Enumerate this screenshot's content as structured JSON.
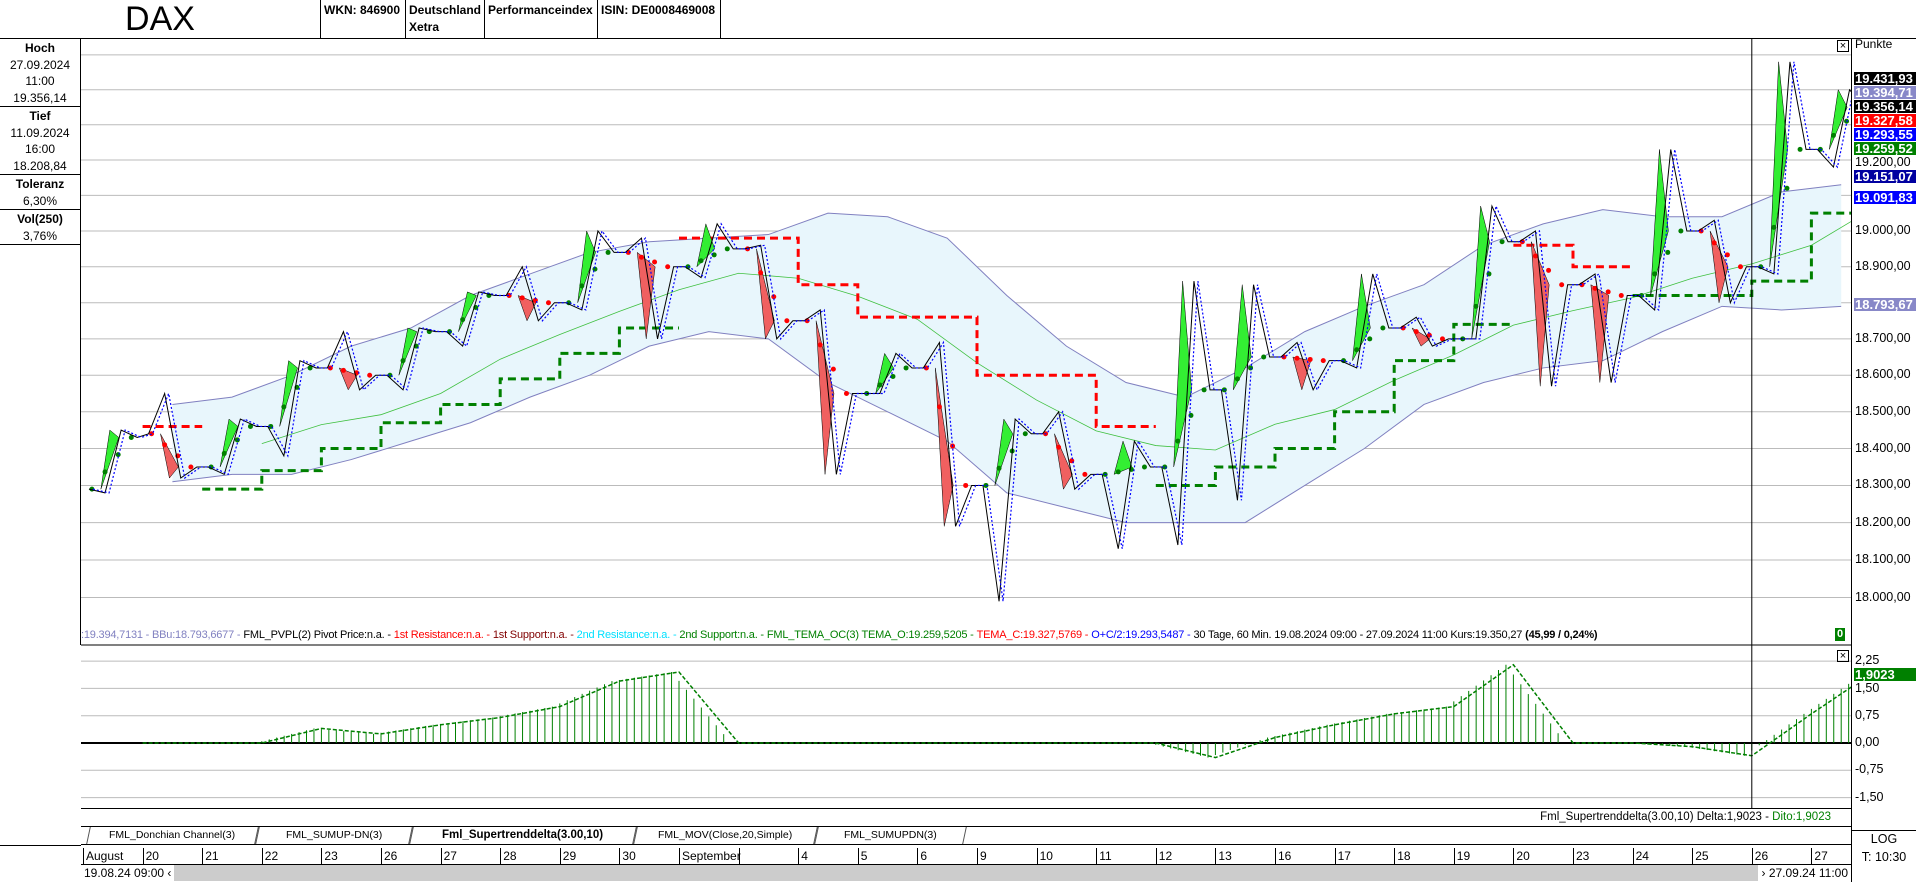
{
  "header": {
    "title": "DAX",
    "cells": [
      "WKN: 846900",
      "Deutschland\nXetra",
      "Performanceindex",
      "ISIN: DE0008469008"
    ]
  },
  "left_panel": [
    {
      "label": "Hoch",
      "values": [
        "27.09.2024",
        "11:00",
        "19.356,14"
      ]
    },
    {
      "label": "Tief",
      "values": [
        "11.09.2024",
        "16:00",
        "18.208,84"
      ]
    },
    {
      "label": "Toleranz",
      "values": [
        "6,30%"
      ]
    },
    {
      "label": "Vol(250)",
      "values": [
        "3,76%"
      ]
    }
  ],
  "right_axis": {
    "unit": "Punkte",
    "ticks": [
      {
        "v": 19200,
        "t": "19.200,00"
      },
      {
        "v": 19000,
        "t": "19.000,00"
      },
      {
        "v": 18900,
        "t": "18.900,00"
      },
      {
        "v": 18700,
        "t": "18.700,00"
      },
      {
        "v": 18600,
        "t": "18.600,00"
      },
      {
        "v": 18500,
        "t": "18.500,00"
      },
      {
        "v": 18400,
        "t": "18.400,00"
      },
      {
        "v": 18300,
        "t": "18.300,00"
      },
      {
        "v": 18200,
        "t": "18.200,00"
      },
      {
        "v": 18100,
        "t": "18.100,00"
      },
      {
        "v": 18000,
        "t": "18.000,00"
      }
    ],
    "markers": [
      {
        "v": 19431.93,
        "t": "19.431,93",
        "bg": "#000000"
      },
      {
        "v": 19394.71,
        "t": "19.394,71",
        "bg": "#8888c8"
      },
      {
        "v": 19356.14,
        "t": "19.356,14",
        "bg": "#000000"
      },
      {
        "v": 19327.58,
        "t": "19.327,58",
        "bg": "#ff0000"
      },
      {
        "v": 19293.55,
        "t": "19.293,55",
        "bg": "#0000ff"
      },
      {
        "v": 19259.52,
        "t": "19.259,52",
        "bg": "#008000"
      },
      {
        "v": 19151.07,
        "t": "19.151,07",
        "bg": "#0000a0"
      },
      {
        "v": 19091.83,
        "t": "19.091,83",
        "bg": "#0000ff"
      },
      {
        "v": 18793.67,
        "t": "18.793,67",
        "bg": "#8888c8"
      }
    ],
    "indicator_ticks": [
      {
        "v": 2.25,
        "t": "2,25"
      },
      {
        "v": 1.5,
        "t": "1,50"
      },
      {
        "v": 0.75,
        "t": "0,75"
      },
      {
        "v": 0,
        "t": "0,00"
      },
      {
        "v": -0.75,
        "t": "-0,75"
      },
      {
        "v": -1.5,
        "t": "-1,50"
      }
    ],
    "indicator_marker": {
      "v": 1.9023,
      "t": "1,9023",
      "bg": "#008000"
    },
    "scale_mode": "LOG",
    "time": "T: 10:30"
  },
  "legend": [
    {
      "t": ":19.394,7131 - BBu:18.793,6677 -",
      "c": "#8080c0"
    },
    {
      "t": "FML_PVPL(2) Pivot Price:n.a. -",
      "c": "#000000"
    },
    {
      "t": "1st Resistance:n.a. -",
      "c": "#ff0000"
    },
    {
      "t": "1st Support:n.a. -",
      "c": "#800000"
    },
    {
      "t": "2nd Resistance:n.a. -",
      "c": "#00e0ff"
    },
    {
      "t": "2nd Support:n.a. -",
      "c": "#008000"
    },
    {
      "t": "FML_TEMA_OC(3) TEMA_O:19.259,5205 -",
      "c": "#008000"
    },
    {
      "t": "TEMA_C:19.327,5769 -",
      "c": "#ff0000"
    },
    {
      "t": "O+C/2:19.293,5487 -",
      "c": "#0000ff"
    },
    {
      "t": "30 Tage, 60 Min. 19.08.2024 09:00 - 27.09.2024 11:00  Kurs:19.350,27",
      "c": "#000000"
    },
    {
      "t": "(45,99 / 0,24%)",
      "c": "#000000",
      "bold": true
    }
  ],
  "legend_marker": "0",
  "indicator_legend": {
    "main": "Fml_Supertrenddelta(3.00,10) Delta:1,9023 -",
    "dito": "Dito:1,9023"
  },
  "tabs": [
    {
      "label": "FML_Donchian Channel(3)",
      "active": false
    },
    {
      "label": "FML_SUMUP-DN(3)",
      "active": false
    },
    {
      "label": "Fml_Supertrenddelta(3.00,10)",
      "active": true
    },
    {
      "label": "FML_MOV(Close,20,Simple)",
      "active": false
    },
    {
      "label": "FML_SUMUPDN(3)",
      "active": false
    }
  ],
  "scrollbar": {
    "start": "19.08.24 09:00",
    "end": "27.09.24 11:00"
  },
  "colors": {
    "up": "#33ee33",
    "down": "#f06060",
    "band": "#e8f6fc",
    "band_line": "#8080c0",
    "support": "#008000",
    "resistance": "#ff0000",
    "histogram": "#008000"
  },
  "chart_data": {
    "type": "line",
    "scale": "log",
    "grid": true,
    "ylim": [
      17950,
      19500
    ],
    "indicator_ylim": [
      -1.75,
      2.5
    ],
    "x_labels": [
      "August",
      "20",
      "21",
      "22",
      "23",
      "26",
      "27",
      "28",
      "29",
      "30",
      "September",
      "",
      "4",
      "5",
      "6",
      "9",
      "10",
      "11",
      "12",
      "13",
      "16",
      "17",
      "18",
      "19",
      "20",
      "23",
      "24",
      "25",
      "26",
      "27"
    ],
    "days": [
      "19.08",
      "20.08",
      "21.08",
      "22.08",
      "23.08",
      "26.08",
      "27.08",
      "28.08",
      "29.08",
      "30.08",
      "02.09",
      "03.09",
      "04.09",
      "05.09",
      "06.09",
      "09.09",
      "10.09",
      "11.09",
      "12.09",
      "13.09",
      "16.09",
      "17.09",
      "18.09",
      "19.09",
      "20.09",
      "23.09",
      "24.09",
      "25.09",
      "26.09",
      "27.09"
    ],
    "ohlc": [
      [
        18290,
        18450,
        18280,
        18430
      ],
      [
        18440,
        18550,
        18320,
        18350
      ],
      [
        18350,
        18480,
        18330,
        18460
      ],
      [
        18460,
        18640,
        18380,
        18620
      ],
      [
        18620,
        18720,
        18560,
        18600
      ],
      [
        18600,
        18730,
        18560,
        18720
      ],
      [
        18720,
        18830,
        18680,
        18820
      ],
      [
        18820,
        18900,
        18750,
        18800
      ],
      [
        18800,
        19000,
        18780,
        18940
      ],
      [
        18940,
        18980,
        18700,
        18900
      ],
      [
        18900,
        19020,
        18870,
        18950
      ],
      [
        18950,
        18960,
        18700,
        18750
      ],
      [
        18750,
        18780,
        18330,
        18550
      ],
      [
        18550,
        18660,
        18550,
        18620
      ],
      [
        18620,
        18690,
        18190,
        18300
      ],
      [
        18300,
        18480,
        17990,
        18440
      ],
      [
        18440,
        18500,
        18290,
        18330
      ],
      [
        18330,
        18420,
        18130,
        18350
      ],
      [
        18350,
        18860,
        18140,
        18560
      ],
      [
        18560,
        18850,
        18260,
        18650
      ],
      [
        18650,
        18690,
        18560,
        18640
      ],
      [
        18640,
        18880,
        18620,
        18730
      ],
      [
        18730,
        18760,
        18680,
        18700
      ],
      [
        18700,
        19070,
        18700,
        18970
      ],
      [
        18970,
        19000,
        18570,
        18850
      ],
      [
        18850,
        18880,
        18580,
        18820
      ],
      [
        18820,
        19230,
        18780,
        19000
      ],
      [
        19000,
        19030,
        18800,
        18900
      ],
      [
        18900,
        19480,
        18880,
        19230
      ],
      [
        19230,
        19400,
        19180,
        19350
      ]
    ],
    "bb_upper": [
      null,
      18520,
      18540,
      18600,
      18680,
      18730,
      18820,
      18880,
      18940,
      18970,
      18980,
      18990,
      19050,
      19040,
      18980,
      18820,
      18680,
      18580,
      18540,
      18620,
      18720,
      18790,
      18850,
      18960,
      19020,
      19060,
      19040,
      19040,
      19110,
      19130
    ],
    "bb_lower": [
      null,
      18310,
      18330,
      18330,
      18370,
      18420,
      18470,
      18540,
      18600,
      18680,
      18720,
      18700,
      18580,
      18500,
      18420,
      18280,
      18240,
      18200,
      18200,
      18200,
      18300,
      18400,
      18520,
      18580,
      18620,
      18640,
      18720,
      18790,
      18780,
      18790
    ],
    "supertrend_support": [
      null,
      null,
      18290,
      18340,
      18400,
      18470,
      18520,
      18590,
      18660,
      18730,
      null,
      null,
      null,
      null,
      null,
      null,
      null,
      null,
      18300,
      18350,
      18400,
      18500,
      18640,
      18740,
      null,
      null,
      18820,
      18820,
      18860,
      19050
    ],
    "supertrend_resistance": [
      null,
      18460,
      null,
      null,
      null,
      null,
      null,
      null,
      null,
      null,
      18980,
      18980,
      18850,
      18760,
      18760,
      18600,
      18600,
      18460,
      null,
      null,
      null,
      null,
      null,
      null,
      18960,
      18900,
      null,
      null,
      null,
      null
    ],
    "supertrend_delta": [
      0,
      0,
      0,
      0.4,
      0.25,
      0.5,
      0.7,
      1.0,
      1.7,
      1.95,
      0,
      0,
      0,
      0,
      0,
      0,
      0,
      0,
      -0.4,
      0.15,
      0.5,
      0.8,
      1.0,
      2.15,
      0,
      0,
      -0.1,
      -0.35,
      0.8,
      1.9
    ]
  }
}
